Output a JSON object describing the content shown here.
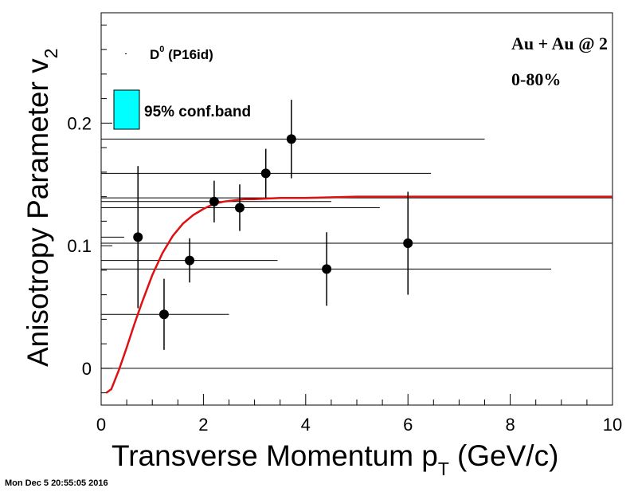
{
  "chart_data": {
    "type": "scatter",
    "title": "",
    "xlabel": "Transverse Momentum p",
    "xlabel_sub": "T",
    "xlabel_unit": "(GeV/c)",
    "ylabel": "Anisotropy Parameter v",
    "ylabel_sub": "2",
    "xlim": [
      0,
      10
    ],
    "ylim": [
      -0.03,
      0.29
    ],
    "x_ticks": [
      0,
      2,
      4,
      6,
      8,
      10
    ],
    "x_tick_labels": [
      "0",
      "2",
      "4",
      "6",
      "8",
      "10"
    ],
    "y_ticks": [
      0,
      0.1,
      0.2
    ],
    "y_tick_labels": [
      "0",
      "0.1",
      "0.2"
    ],
    "grid": false,
    "legend_position": "top-left",
    "legend": {
      "series_label": "D",
      "series_sup": "0",
      "series_suffix": " (P16id)",
      "band_label": "95% conf.band"
    },
    "annotation": {
      "line1": "Au + Au @ 2",
      "line2": "0-80%"
    },
    "series": [
      {
        "name": "D0 (P16id)",
        "color": "#000000",
        "points": [
          {
            "x": 0.72,
            "y": 0.107,
            "yerr": 0.058
          },
          {
            "x": 1.23,
            "y": 0.044,
            "yerr": 0.029
          },
          {
            "x": 1.73,
            "y": 0.088,
            "yerr": 0.018
          },
          {
            "x": 2.21,
            "y": 0.136,
            "yerr": 0.017
          },
          {
            "x": 2.71,
            "y": 0.131,
            "yerr": 0.019
          },
          {
            "x": 3.22,
            "y": 0.159,
            "yerr": 0.02
          },
          {
            "x": 3.72,
            "y": 0.187,
            "yerr": 0.032
          },
          {
            "x": 4.41,
            "y": 0.081,
            "yerr": 0.03
          },
          {
            "x": 6.0,
            "y": 0.102,
            "yerr": 0.042
          }
        ]
      }
    ],
    "fit_curve": {
      "color": "#dd1111",
      "x": [
        0.1,
        0.2,
        0.35,
        0.5,
        0.65,
        0.8,
        1.0,
        1.2,
        1.4,
        1.6,
        1.8,
        2.0,
        2.2,
        2.4,
        2.6,
        2.8,
        3.0,
        3.5,
        4.0,
        5.0,
        6.0,
        8.0,
        10.0
      ],
      "y": [
        -0.02,
        -0.017,
        -0.001,
        0.017,
        0.036,
        0.054,
        0.076,
        0.094,
        0.108,
        0.118,
        0.125,
        0.13,
        0.134,
        0.136,
        0.137,
        0.138,
        0.138,
        0.139,
        0.139,
        0.14,
        0.14,
        0.14,
        0.14
      ]
    },
    "confidence_band_color": "#00ffff",
    "horizontal_lines": [
      {
        "y": 0.187,
        "x_end": 7.5
      },
      {
        "y": 0.159,
        "x_end": 6.45
      },
      {
        "y": 0.139,
        "x_end": 10.0
      },
      {
        "y": 0.136,
        "x_end": 4.5
      },
      {
        "y": 0.131,
        "x_end": 5.45
      },
      {
        "y": 0.107,
        "x_end": 0.45
      },
      {
        "y": 0.102,
        "x_end": 10.0
      },
      {
        "y": 0.088,
        "x_end": 3.45
      },
      {
        "y": 0.081,
        "x_end": 8.8
      },
      {
        "y": 0.044,
        "x_end": 2.5
      },
      {
        "y": 0.0,
        "x_end": 10.0
      }
    ]
  },
  "footer": {
    "timestamp": "Mon Dec  5 20:55:05 2016"
  }
}
